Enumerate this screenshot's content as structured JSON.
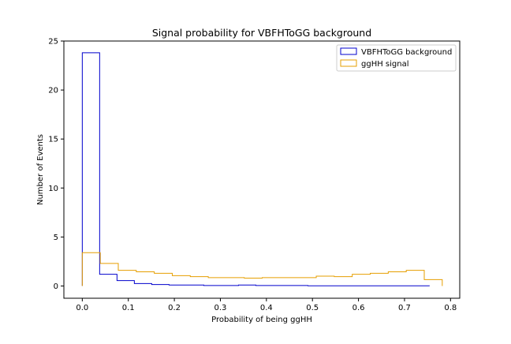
{
  "chart_data": {
    "type": "histogram-step",
    "title": "Signal probability for VBFHToGG background",
    "xlabel": "Probability of being ggHH",
    "ylabel": "Number of Events",
    "xlim": [
      -0.04,
      0.82
    ],
    "ylim": [
      -1.25,
      25
    ],
    "xticks": [
      "0.0",
      "0.1",
      "0.2",
      "0.3",
      "0.4",
      "0.5",
      "0.6",
      "0.7",
      "0.8"
    ],
    "xtick_values": [
      0.0,
      0.1,
      0.2,
      0.3,
      0.4,
      0.5,
      0.6,
      0.7,
      0.8
    ],
    "yticks": [
      "0",
      "5",
      "10",
      "15",
      "20",
      "25"
    ],
    "ytick_values": [
      0,
      5,
      10,
      15,
      20,
      25
    ],
    "grid": false,
    "legend_position": "top-right",
    "series": [
      {
        "name": "VBFHToGG background",
        "color": "#0000cc",
        "bin_edges": [
          0.0,
          0.0377,
          0.0754,
          0.1131,
          0.1508,
          0.1885,
          0.2262,
          0.2639,
          0.3016,
          0.3393,
          0.377,
          0.4147,
          0.4524,
          0.4901,
          0.5278,
          0.5655,
          0.6032,
          0.6409,
          0.6786,
          0.7163,
          0.754
        ],
        "counts": [
          23.8,
          1.2,
          0.55,
          0.25,
          0.15,
          0.1,
          0.1,
          0.05,
          0.05,
          0.1,
          0.05,
          0.05,
          0.05,
          0.02,
          0.02,
          0.02,
          0.02,
          0.02,
          0.02,
          0.02
        ]
      },
      {
        "name": "ggHH signal",
        "color": "#e69f00",
        "bin_edges": [
          0.0,
          0.0391,
          0.0782,
          0.1173,
          0.1564,
          0.1955,
          0.2346,
          0.2737,
          0.3128,
          0.3519,
          0.391,
          0.4301,
          0.4692,
          0.5083,
          0.5474,
          0.5865,
          0.6256,
          0.6647,
          0.7038,
          0.7429,
          0.782
        ],
        "counts": [
          3.4,
          2.3,
          1.6,
          1.45,
          1.3,
          1.05,
          0.95,
          0.85,
          0.85,
          0.8,
          0.85,
          0.85,
          0.85,
          1.0,
          0.95,
          1.2,
          1.3,
          1.45,
          1.6,
          0.65
        ]
      }
    ]
  }
}
